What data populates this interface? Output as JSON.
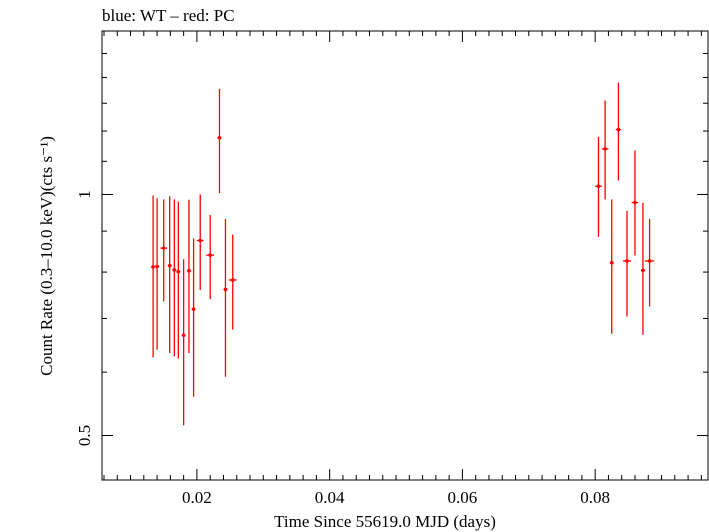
{
  "header": {
    "title": "blue: WT – red: PC"
  },
  "colors": {
    "pc": "#ff0000",
    "axis": "#000000"
  },
  "chart_data": {
    "type": "scatter",
    "title": "blue: WT – red: PC",
    "xlabel": "Time Since 55619.0 MJD (days)",
    "ylabel": "Count Rate (0.3–10.0 keV)(cts s⁻¹)",
    "yscale": "log",
    "xlim": [
      0.0057,
      0.097
    ],
    "ylim": [
      0.44,
      1.6
    ],
    "xticks": [
      {
        "value": 0.02,
        "label": "0.02"
      },
      {
        "value": 0.04,
        "label": "0.04"
      },
      {
        "value": 0.06,
        "label": "0.06"
      },
      {
        "value": 0.08,
        "label": "0.08"
      }
    ],
    "yticks": [
      {
        "value": 0.5,
        "label": "0.5"
      },
      {
        "value": 1,
        "label": "1"
      }
    ],
    "series": [
      {
        "color": "#ff0000",
        "points": [
          {
            "x": 0.0134,
            "y": 0.812,
            "xerr": 0.0003,
            "ylo": 0.626,
            "yhi": 0.997
          },
          {
            "x": 0.014,
            "y": 0.813,
            "xerr": 0.0003,
            "ylo": 0.64,
            "yhi": 0.989
          },
          {
            "x": 0.015,
            "y": 0.857,
            "xerr": 0.0005,
            "ylo": 0.735,
            "yhi": 0.986
          },
          {
            "x": 0.0159,
            "y": 0.815,
            "xerr": 0.0003,
            "ylo": 0.634,
            "yhi": 0.995
          },
          {
            "x": 0.0166,
            "y": 0.805,
            "xerr": 0.0003,
            "ylo": 0.628,
            "yhi": 0.986
          },
          {
            "x": 0.0172,
            "y": 0.801,
            "xerr": 0.0003,
            "ylo": 0.624,
            "yhi": 0.98
          },
          {
            "x": 0.018,
            "y": 0.667,
            "xerr": 0.0003,
            "ylo": 0.515,
            "yhi": 0.83
          },
          {
            "x": 0.0188,
            "y": 0.803,
            "xerr": 0.0003,
            "ylo": 0.634,
            "yhi": 0.985
          },
          {
            "x": 0.0195,
            "y": 0.719,
            "xerr": 0.0003,
            "ylo": 0.559,
            "yhi": 0.881
          },
          {
            "x": 0.0205,
            "y": 0.876,
            "xerr": 0.0005,
            "ylo": 0.76,
            "yhi": 1.0
          },
          {
            "x": 0.022,
            "y": 0.84,
            "xerr": 0.0006,
            "ylo": 0.74,
            "yhi": 0.943
          },
          {
            "x": 0.0234,
            "y": 1.177,
            "xerr": 0.0003,
            "ylo": 1.004,
            "yhi": 1.355
          },
          {
            "x": 0.0243,
            "y": 0.761,
            "xerr": 0.0003,
            "ylo": 0.592,
            "yhi": 0.932
          },
          {
            "x": 0.0254,
            "y": 0.782,
            "xerr": 0.0006,
            "ylo": 0.678,
            "yhi": 0.891
          },
          {
            "x": 0.0805,
            "y": 1.024,
            "xerr": 0.0005,
            "ylo": 0.885,
            "yhi": 1.18
          },
          {
            "x": 0.0815,
            "y": 1.14,
            "xerr": 0.0005,
            "ylo": 0.986,
            "yhi": 1.31
          },
          {
            "x": 0.0825,
            "y": 0.822,
            "xerr": 0.0003,
            "ylo": 0.67,
            "yhi": 0.986
          },
          {
            "x": 0.0835,
            "y": 1.205,
            "xerr": 0.0004,
            "ylo": 1.041,
            "yhi": 1.38
          },
          {
            "x": 0.0848,
            "y": 0.826,
            "xerr": 0.0006,
            "ylo": 0.704,
            "yhi": 0.954
          },
          {
            "x": 0.086,
            "y": 0.977,
            "xerr": 0.0005,
            "ylo": 0.839,
            "yhi": 1.135
          },
          {
            "x": 0.0872,
            "y": 0.804,
            "xerr": 0.0003,
            "ylo": 0.668,
            "yhi": 0.976
          },
          {
            "x": 0.0882,
            "y": 0.826,
            "xerr": 0.0007,
            "ylo": 0.725,
            "yhi": 0.932
          }
        ]
      }
    ]
  }
}
